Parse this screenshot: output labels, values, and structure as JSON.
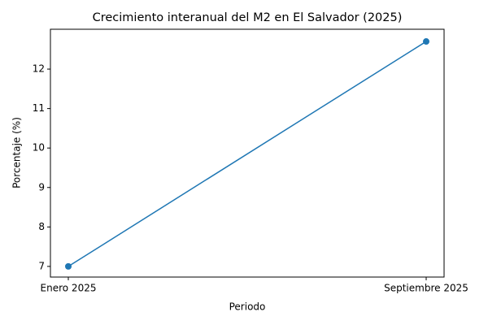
{
  "chart_data": {
    "type": "line",
    "title": "Crecimiento interanual del M2 en El Salvador (2025)",
    "x_label": "Periodo",
    "y_label": "Porcentaje (%)",
    "categories": [
      "Enero 2025",
      "Septiembre 2025"
    ],
    "series": [
      {
        "name": "M2",
        "color": "#1f77b4",
        "values": [
          7.0,
          12.7
        ]
      }
    ],
    "ylim": [
      6.73,
      13.01
    ],
    "yticks": [
      7,
      8,
      9,
      10,
      11,
      12
    ],
    "grid": false,
    "legend": false
  }
}
